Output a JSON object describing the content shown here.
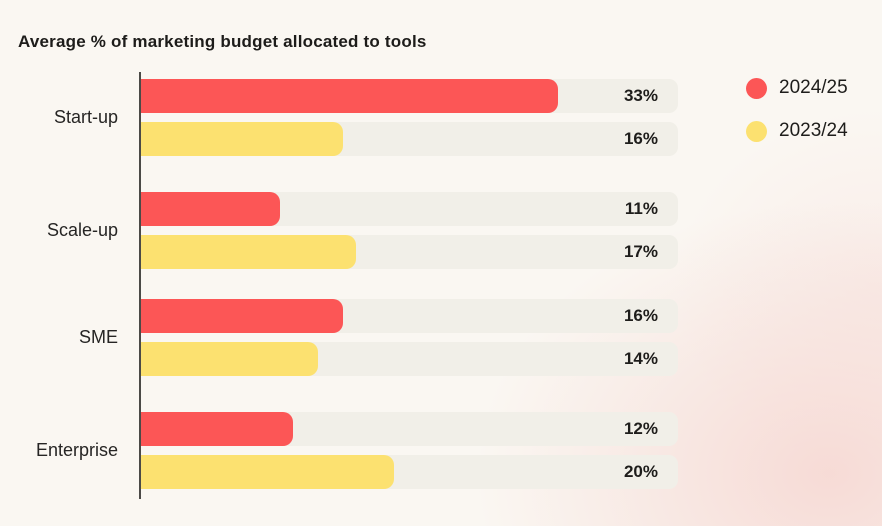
{
  "chart_data": {
    "type": "bar",
    "orientation": "horizontal",
    "title": "Average % of marketing budget allocated to tools",
    "categories": [
      "Start-up",
      "Scale-up",
      "SME",
      "Enterprise"
    ],
    "series": [
      {
        "name": "2024/25",
        "color": "#fc5656",
        "values": [
          33,
          11,
          16,
          12
        ]
      },
      {
        "name": "2023/24",
        "color": "#fce170",
        "values": [
          16,
          17,
          14,
          20
        ]
      }
    ],
    "value_suffix": "%",
    "xlim": [
      0,
      42.5
    ],
    "grid": false,
    "legend_position": "top-right",
    "track_color": "#f1efe8",
    "axis_color": "#4b4a47",
    "background_color": "#faf7f2",
    "text_color": "#1e1d1b"
  }
}
